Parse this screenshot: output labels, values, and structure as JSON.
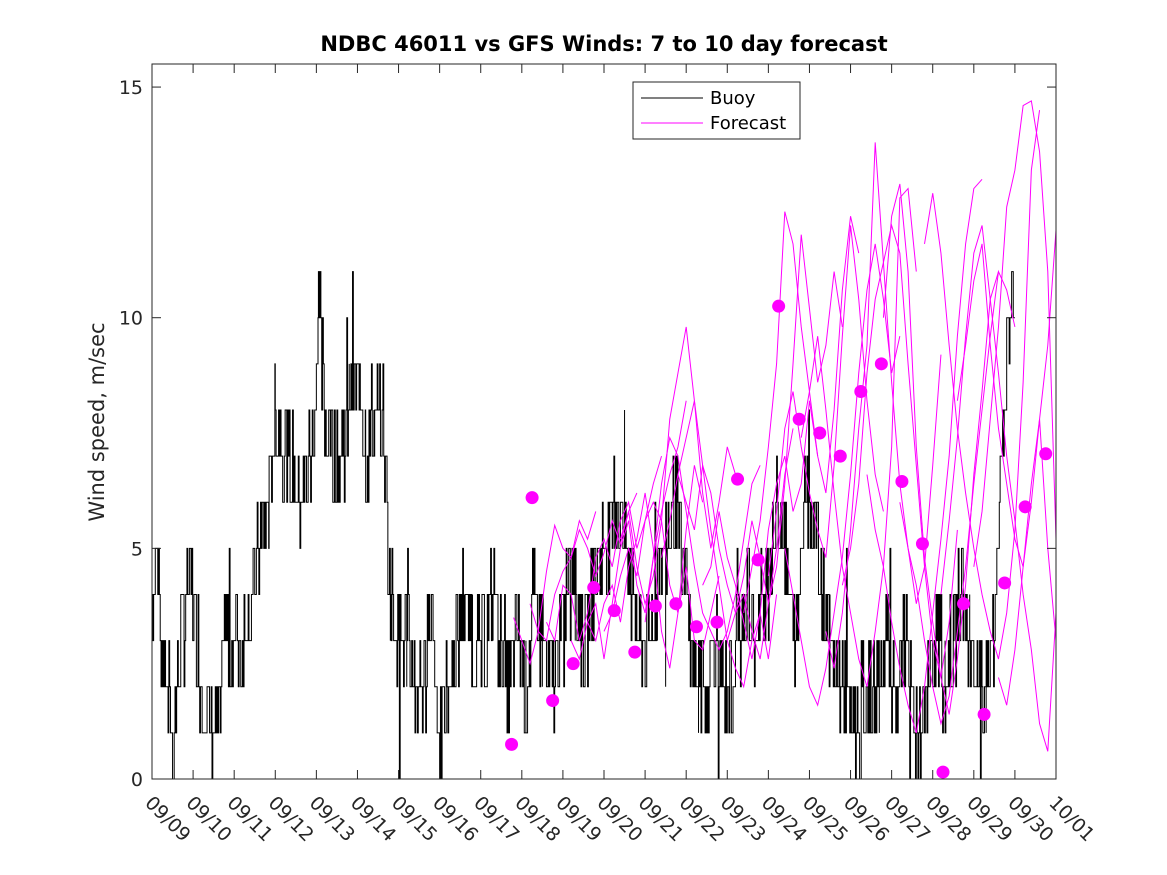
{
  "chart_data": {
    "type": "line",
    "title": "NDBC 46011 vs GFS Winds: 7 to 10 day forecast",
    "xlabel": "",
    "ylabel": "Wind speed, m/sec",
    "xlim": [
      0,
      22
    ],
    "ylim": [
      0,
      15.5
    ],
    "x_ticks": [
      "09/09",
      "09/10",
      "09/11",
      "09/12",
      "09/13",
      "09/14",
      "09/15",
      "09/16",
      "09/17",
      "09/18",
      "09/19",
      "09/20",
      "09/21",
      "09/22",
      "09/23",
      "09/24",
      "09/25",
      "09/26",
      "09/27",
      "09/28",
      "09/29",
      "09/30",
      "10/01"
    ],
    "y_ticks": [
      0,
      5,
      10,
      15
    ],
    "legend": {
      "position": "top-center",
      "entries": [
        {
          "label": "Buoy",
          "color": "#000000"
        },
        {
          "label": "Forecast",
          "color": "#ff00ff"
        }
      ]
    },
    "colors": {
      "buoy": "#000000",
      "forecast": "#ff00ff",
      "markers": "#ff00ff"
    },
    "buoy_anchors": {
      "x": [
        0,
        0.1,
        0.25,
        0.35,
        0.5,
        0.7,
        0.85,
        1.0,
        1.2,
        1.4,
        1.6,
        1.8,
        2.0,
        2.2,
        2.4,
        2.6,
        2.85,
        3.0,
        3.3,
        3.6,
        3.9,
        4.05,
        4.2,
        4.4,
        4.6,
        4.8,
        5.05,
        5.2,
        5.4,
        5.6,
        5.8,
        6.0,
        6.2,
        6.4,
        6.6,
        6.8,
        7.0,
        7.2,
        7.4,
        7.6,
        7.8,
        7.95,
        8.1,
        8.3,
        8.5,
        8.7,
        8.9,
        9.1,
        9.3,
        9.5,
        9.7,
        9.9,
        10.1,
        10.3,
        10.5,
        10.7,
        10.9,
        11.1,
        11.3,
        11.5,
        11.7,
        11.9,
        12.1,
        12.3,
        12.5,
        12.7,
        12.9,
        13.1,
        13.3,
        13.5,
        13.7,
        13.9,
        14.1,
        14.3,
        14.5,
        14.7,
        14.9,
        15.1,
        15.3,
        15.5,
        15.7,
        15.9,
        16.1,
        16.3,
        16.5,
        16.7,
        16.9,
        17.1,
        17.3,
        17.5,
        17.7,
        17.9,
        18.1,
        18.3,
        18.5,
        18.7,
        18.9,
        19.1,
        19.3,
        19.5,
        19.7,
        19.9,
        20.1,
        20.3,
        20.5,
        20.7,
        20.9,
        21.0
      ],
      "y": [
        4,
        5,
        3,
        2,
        1,
        3,
        4,
        4,
        2,
        1,
        1,
        3,
        3,
        3,
        4,
        5,
        6,
        8,
        7,
        6,
        7,
        10,
        8,
        7,
        7,
        8,
        9,
        7,
        8,
        8,
        4,
        3,
        3,
        2,
        2,
        4,
        1,
        2,
        3,
        4,
        3,
        3,
        3,
        4,
        3,
        2,
        3,
        2,
        4,
        3,
        2,
        3,
        4,
        4,
        3,
        4,
        5,
        5,
        6,
        5,
        4,
        3,
        3,
        4,
        5,
        6,
        5,
        3,
        2,
        2,
        3,
        2,
        2,
        3,
        4,
        3,
        4,
        5,
        6,
        4,
        3,
        7,
        6,
        4,
        3,
        2,
        2,
        1,
        2,
        2,
        2,
        3,
        2,
        3,
        2,
        1,
        2,
        3,
        2,
        3,
        4,
        3,
        2,
        2,
        3,
        8,
        10,
        11
      ]
    },
    "forecast_series": [
      {
        "name": "F1",
        "x": [
          8.8,
          9.0,
          9.2,
          9.4,
          9.6,
          9.8,
          10.0,
          10.2,
          10.4,
          10.6,
          10.8
        ],
        "y": [
          3.5,
          3.0,
          2.5,
          3.2,
          4.5,
          5.5,
          5.0,
          4.8,
          5.6,
          5.2,
          5.8
        ]
      },
      {
        "name": "F2",
        "x": [
          9.2,
          9.4,
          9.6,
          9.8,
          10.0,
          10.2,
          10.4,
          10.6,
          10.8,
          11.0,
          11.2,
          11.4,
          11.6,
          11.8
        ],
        "y": [
          3.8,
          3.2,
          3.0,
          4.0,
          4.5,
          4.8,
          5.4,
          5.0,
          4.4,
          4.9,
          5.6,
          5.1,
          5.8,
          6.2
        ]
      },
      {
        "name": "F3",
        "x": [
          9.6,
          9.8,
          10.0,
          10.2,
          10.4,
          10.6,
          10.8,
          11.0,
          11.2,
          11.4,
          11.6,
          11.8,
          12.0,
          12.2,
          12.4
        ],
        "y": [
          3.4,
          3.0,
          4.2,
          4.0,
          3.0,
          3.6,
          4.8,
          5.2,
          4.6,
          5.6,
          6.0,
          5.0,
          5.6,
          6.4,
          7.0
        ]
      },
      {
        "name": "F4",
        "x": [
          10.2,
          10.4,
          10.6,
          10.8,
          11.0,
          11.2,
          11.4,
          11.6,
          11.8,
          12.0,
          12.2,
          12.4,
          12.6,
          12.8,
          13.0
        ],
        "y": [
          3.0,
          2.6,
          3.4,
          3.8,
          2.6,
          3.8,
          5.0,
          5.6,
          4.2,
          3.6,
          4.8,
          5.8,
          6.6,
          7.2,
          8.2
        ]
      },
      {
        "name": "F5",
        "x": [
          10.6,
          10.8,
          11.0,
          11.2,
          11.4,
          11.6,
          11.8,
          12.0,
          12.2,
          12.4,
          12.6,
          12.8,
          13.0,
          13.2,
          13.4
        ],
        "y": [
          3.4,
          3.0,
          3.8,
          4.2,
          3.4,
          4.6,
          5.2,
          6.2,
          5.0,
          3.2,
          2.4,
          3.6,
          5.4,
          6.8,
          6.0
        ]
      },
      {
        "name": "F6",
        "x": [
          11.0,
          11.2,
          11.4,
          11.6,
          11.8,
          12.0,
          12.2,
          12.4,
          12.6,
          12.8,
          13.0,
          13.2,
          13.4,
          13.6,
          13.8
        ],
        "y": [
          3.2,
          3.6,
          4.4,
          5.0,
          4.4,
          5.6,
          6.0,
          5.6,
          4.2,
          3.6,
          4.6,
          3.0,
          2.8,
          3.6,
          4.4
        ]
      },
      {
        "name": "F7",
        "x": [
          11.4,
          11.6,
          11.8,
          12.0,
          12.2,
          12.4,
          12.6,
          12.8,
          13.0,
          13.2,
          13.4,
          13.6,
          13.8,
          14.0,
          14.2
        ],
        "y": [
          5.2,
          5.8,
          4.6,
          3.8,
          4.4,
          5.6,
          7.8,
          8.8,
          9.8,
          8.2,
          6.2,
          5.0,
          6.0,
          7.2,
          6.6
        ]
      },
      {
        "name": "F8",
        "x": [
          12.0,
          12.2,
          12.4,
          12.6,
          12.8,
          13.0,
          13.2,
          13.4,
          13.6,
          13.8,
          14.0,
          14.2,
          14.4,
          14.6,
          14.8
        ],
        "y": [
          3.4,
          4.8,
          6.4,
          7.4,
          7.0,
          5.8,
          4.6,
          3.6,
          3.2,
          2.8,
          3.2,
          4.0,
          5.2,
          6.4,
          6.8
        ]
      },
      {
        "name": "F9",
        "x": [
          12.4,
          12.6,
          12.8,
          13.0,
          13.2,
          13.4,
          13.6,
          13.8,
          14.0,
          14.2,
          14.4,
          14.6,
          14.8,
          15.0,
          15.2
        ],
        "y": [
          4.8,
          5.6,
          6.6,
          7.4,
          8.2,
          6.8,
          5.4,
          4.2,
          3.0,
          2.4,
          2.0,
          3.0,
          3.6,
          2.6,
          4.0
        ]
      },
      {
        "name": "F10",
        "x": [
          12.8,
          13.0,
          13.2,
          13.4,
          13.6,
          13.8,
          14.0,
          14.2,
          14.4,
          14.6,
          14.8,
          15.0,
          15.2,
          15.4,
          15.6
        ],
        "y": [
          6.6,
          6.0,
          5.4,
          6.8,
          6.2,
          5.0,
          4.2,
          3.6,
          4.4,
          5.6,
          4.8,
          3.8,
          5.0,
          6.6,
          7.6
        ]
      },
      {
        "name": "F11",
        "x": [
          13.4,
          13.6,
          13.8,
          14.0,
          14.2,
          14.4,
          14.6,
          14.8,
          15.0,
          15.2,
          15.4,
          15.6,
          15.8,
          16.0,
          16.2
        ],
        "y": [
          4.2,
          4.6,
          5.8,
          4.8,
          4.2,
          3.4,
          2.6,
          3.6,
          5.4,
          6.4,
          7.0,
          5.8,
          6.4,
          8.2,
          7.0
        ]
      },
      {
        "name": "F12",
        "x": [
          14.0,
          14.2,
          14.4,
          14.6,
          14.8,
          15.0,
          15.2,
          15.4,
          15.6,
          15.8,
          16.0,
          16.2,
          16.4,
          16.6,
          16.8
        ],
        "y": [
          3.0,
          3.6,
          4.0,
          3.2,
          2.6,
          3.8,
          4.6,
          6.4,
          9.0,
          11.8,
          10.2,
          8.6,
          9.4,
          11.0,
          9.8
        ]
      },
      {
        "name": "F13",
        "x": [
          14.4,
          14.6,
          14.8,
          15.0,
          15.2,
          15.4,
          15.6,
          15.8,
          16.0,
          16.2,
          16.4,
          16.6,
          16.8,
          17.0,
          17.2
        ],
        "y": [
          3.6,
          4.6,
          5.6,
          7.2,
          9.0,
          12.3,
          11.6,
          9.8,
          8.4,
          7.0,
          6.2,
          8.0,
          10.6,
          12.2,
          11.4
        ]
      },
      {
        "name": "F14",
        "x": [
          15.0,
          15.2,
          15.4,
          15.6,
          15.8,
          16.0,
          16.2,
          16.4,
          16.6,
          16.8,
          17.0,
          17.2,
          17.4,
          17.6,
          17.8
        ],
        "y": [
          4.4,
          5.8,
          7.6,
          8.4,
          7.2,
          6.2,
          5.4,
          4.8,
          6.8,
          9.6,
          12.0,
          10.4,
          8.2,
          6.6,
          5.8
        ]
      },
      {
        "name": "F15",
        "x": [
          15.4,
          15.6,
          15.8,
          16.0,
          16.2,
          16.4,
          16.6,
          16.8,
          17.0,
          17.2,
          17.4,
          17.6,
          17.8,
          18.0,
          18.2
        ],
        "y": [
          5.0,
          4.0,
          3.0,
          2.0,
          1.6,
          2.4,
          3.6,
          4.8,
          6.6,
          8.8,
          10.6,
          11.6,
          10.4,
          8.8,
          9.6
        ]
      },
      {
        "name": "F16",
        "x": [
          15.8,
          16.0,
          16.2,
          16.4,
          16.6,
          16.8,
          17.0,
          17.2,
          17.4,
          17.6,
          17.8,
          18.0,
          18.2,
          18.4,
          18.6
        ],
        "y": [
          7.4,
          8.4,
          9.6,
          8.0,
          6.2,
          4.6,
          3.6,
          2.6,
          2.0,
          3.2,
          4.6,
          7.2,
          12.6,
          12.8,
          11.0
        ]
      },
      {
        "name": "F17",
        "x": [
          16.4,
          16.6,
          16.8,
          17.0,
          17.2,
          17.4,
          17.6,
          17.8,
          18.0,
          18.2,
          18.4,
          18.6,
          18.8,
          19.0,
          19.2
        ],
        "y": [
          3.2,
          2.4,
          3.6,
          5.4,
          7.6,
          9.4,
          13.8,
          11.2,
          8.6,
          6.4,
          5.0,
          3.8,
          4.6,
          6.8,
          9.2
        ]
      },
      {
        "name": "F18",
        "x": [
          16.8,
          17.0,
          17.2,
          17.4,
          17.6,
          17.8,
          18.0,
          18.2,
          18.4,
          18.6,
          18.8,
          19.0,
          19.2,
          19.4,
          19.6
        ],
        "y": [
          4.2,
          5.0,
          6.4,
          8.8,
          10.4,
          11.2,
          12.0,
          11.4,
          9.0,
          6.8,
          4.6,
          3.0,
          2.2,
          3.4,
          5.4
        ]
      },
      {
        "name": "F19",
        "x": [
          17.4,
          17.6,
          17.8,
          18.0,
          18.2,
          18.4,
          18.6,
          18.8,
          19.0,
          19.2,
          19.4,
          19.6,
          19.8,
          20.0,
          20.2
        ],
        "y": [
          6.6,
          5.4,
          4.6,
          3.4,
          2.4,
          1.6,
          1.0,
          2.0,
          3.6,
          5.2,
          7.0,
          9.6,
          11.6,
          12.8,
          13.0
        ]
      },
      {
        "name": "F20",
        "x": [
          17.8,
          18.0,
          18.2,
          18.4,
          18.6,
          18.8,
          19.0,
          19.2,
          19.4,
          19.6,
          19.8,
          20.0,
          20.2,
          20.4,
          20.6
        ],
        "y": [
          10.0,
          12.2,
          12.9,
          11.0,
          7.2,
          4.8,
          3.4,
          2.2,
          1.4,
          2.6,
          4.2,
          6.6,
          8.4,
          10.4,
          11.0
        ]
      },
      {
        "name": "F21",
        "x": [
          18.2,
          18.4,
          18.6,
          18.8,
          19.0,
          19.2,
          19.4,
          19.6,
          19.8,
          20.0,
          20.2,
          20.4,
          20.6,
          20.8,
          21.0
        ],
        "y": [
          6.0,
          5.0,
          4.2,
          3.0,
          2.0,
          1.2,
          1.8,
          3.2,
          4.6,
          6.4,
          8.0,
          9.6,
          11.0,
          10.6,
          9.8
        ]
      },
      {
        "name": "F22",
        "x": [
          18.8,
          19.0,
          19.2,
          19.4,
          19.6,
          19.8,
          20.0,
          20.2,
          20.4,
          20.6,
          20.8,
          21.0,
          21.2,
          21.4,
          21.6
        ],
        "y": [
          11.6,
          12.7,
          11.4,
          9.4,
          7.6,
          6.2,
          5.0,
          4.0,
          3.2,
          2.6,
          3.6,
          5.4,
          8.6,
          13.2,
          14.5
        ]
      },
      {
        "name": "F23",
        "x": [
          19.2,
          19.4,
          19.6,
          19.8,
          20.0,
          20.2,
          20.4,
          20.6,
          20.8,
          21.0,
          21.2,
          21.4,
          21.6,
          21.8,
          22.0
        ],
        "y": [
          4.0,
          5.6,
          7.4,
          9.6,
          11.4,
          12.0,
          10.4,
          8.8,
          7.0,
          5.6,
          4.0,
          2.8,
          1.2,
          0.6,
          3.6
        ]
      },
      {
        "name": "F24",
        "x": [
          19.6,
          19.8,
          20.0,
          20.2,
          20.4,
          20.6,
          20.8,
          21.0,
          21.2,
          21.4,
          21.6,
          21.8,
          22.0
        ],
        "y": [
          8.2,
          9.4,
          10.8,
          11.6,
          9.4,
          7.6,
          6.4,
          5.2,
          4.6,
          6.0,
          7.8,
          5.0,
          3.0
        ]
      },
      {
        "name": "F25",
        "x": [
          20.0,
          20.2,
          20.4,
          20.6,
          20.8,
          21.0,
          21.2,
          21.4,
          21.6,
          21.8,
          22.0
        ],
        "y": [
          4.6,
          5.8,
          7.8,
          9.8,
          12.4,
          13.2,
          14.6,
          14.7,
          13.6,
          11.0,
          5.2
        ]
      },
      {
        "name": "F26",
        "x": [
          20.6,
          20.8,
          21.0,
          21.2,
          21.4,
          21.6,
          21.8,
          22.0
        ],
        "y": [
          2.2,
          1.6,
          2.8,
          4.6,
          6.4,
          7.8,
          9.4,
          11.9
        ]
      }
    ],
    "markers": {
      "x": [
        8.75,
        9.25,
        9.75,
        10.25,
        10.75,
        11.25,
        11.75,
        12.25,
        12.75,
        13.25,
        13.75,
        14.25,
        14.75,
        15.25,
        15.75,
        16.25,
        16.75,
        17.25,
        17.75,
        18.25,
        18.75,
        19.25,
        19.75,
        20.25,
        20.75,
        21.25,
        21.75
      ],
      "y": [
        0.75,
        6.1,
        1.7,
        2.5,
        4.15,
        3.65,
        2.75,
        3.75,
        3.8,
        3.3,
        3.4,
        6.5,
        4.75,
        10.25,
        7.8,
        7.5,
        7.0,
        8.4,
        9.0,
        6.45,
        5.1,
        0.15,
        3.8,
        1.4,
        4.25,
        5.9,
        7.05
      ]
    }
  }
}
